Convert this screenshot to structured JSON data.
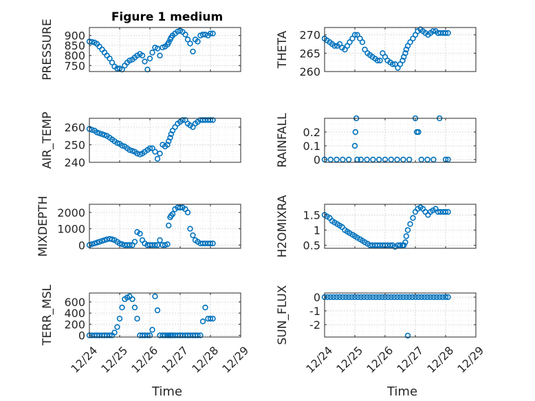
{
  "figure": {
    "title": "Figure 1 medium",
    "xlabel_left": "Time",
    "xlabel_right": "Time"
  },
  "colors": {
    "marker": "#0072BD",
    "axis": "#262626",
    "grid_major": "#d9d9d9",
    "grid_minor": "#ececec",
    "background": "#ffffff"
  },
  "chart_data": [
    {
      "id": "pressure",
      "type": "scatter",
      "ylabel": "PRESSURE",
      "xticks": [],
      "xlim": [
        0,
        5
      ],
      "ylim": [
        720,
        940
      ],
      "yticks": [
        750,
        800,
        850,
        900
      ],
      "ytick_labels": [
        "750",
        "800",
        "850",
        "900"
      ],
      "x": [
        0.0,
        0.08,
        0.17,
        0.25,
        0.33,
        0.42,
        0.5,
        0.58,
        0.67,
        0.75,
        0.83,
        0.92,
        1.0,
        1.08,
        1.17,
        1.25,
        1.33,
        1.42,
        1.5,
        1.58,
        1.67,
        1.75,
        1.83,
        1.92,
        2.0,
        2.08,
        2.17,
        2.25,
        2.33,
        2.42,
        2.5,
        2.58,
        2.62,
        2.67,
        2.7,
        2.75,
        2.83,
        2.92,
        3.0,
        3.08,
        3.17,
        3.25,
        3.33,
        3.42,
        3.5,
        3.58,
        3.67,
        3.75,
        3.83,
        3.92,
        4.0,
        4.08
      ],
      "y": [
        870,
        868,
        865,
        858,
        845,
        830,
        815,
        800,
        785,
        765,
        745,
        735,
        735,
        730,
        750,
        765,
        775,
        780,
        790,
        800,
        808,
        800,
        770,
        730,
        785,
        815,
        840,
        835,
        800,
        840,
        845,
        855,
        865,
        880,
        890,
        900,
        910,
        920,
        925,
        918,
        905,
        880,
        860,
        820,
        880,
        870,
        900,
        905,
        905,
        900,
        910,
        910
      ]
    },
    {
      "id": "theta",
      "type": "scatter",
      "ylabel": "THETA",
      "xticks": [],
      "xlim": [
        0,
        5
      ],
      "ylim": [
        260,
        272
      ],
      "yticks": [
        260,
        265,
        270
      ],
      "ytick_labels": [
        "260",
        "265",
        "270"
      ],
      "x": [
        0.0,
        0.08,
        0.17,
        0.25,
        0.33,
        0.42,
        0.5,
        0.58,
        0.67,
        0.75,
        0.83,
        0.92,
        1.0,
        1.08,
        1.17,
        1.25,
        1.33,
        1.42,
        1.5,
        1.58,
        1.67,
        1.75,
        1.83,
        1.92,
        2.0,
        2.08,
        2.17,
        2.25,
        2.33,
        2.42,
        2.5,
        2.58,
        2.62,
        2.67,
        2.7,
        2.75,
        2.83,
        2.92,
        3.0,
        3.08,
        3.17,
        3.25,
        3.33,
        3.42,
        3.5,
        3.58,
        3.67,
        3.75,
        3.83,
        3.92,
        4.0,
        4.08
      ],
      "y": [
        269,
        268.5,
        268,
        267.5,
        267,
        267,
        267.5,
        266.5,
        266,
        267,
        268,
        269,
        270,
        270,
        269,
        268,
        266,
        265,
        264.5,
        264,
        263.5,
        263,
        263,
        265,
        264,
        263,
        262.5,
        262,
        262,
        261,
        262,
        263,
        264,
        265,
        266,
        267,
        268,
        269,
        270,
        271,
        271.5,
        271,
        270.5,
        270,
        270.5,
        271,
        271,
        270.5,
        270.5,
        270.5,
        270.5,
        270.5
      ]
    },
    {
      "id": "air_temp",
      "type": "scatter",
      "ylabel": "AIR_TEMP",
      "xticks": [],
      "xlim": [
        0,
        5
      ],
      "ylim": [
        240,
        265
      ],
      "yticks": [
        240,
        250,
        260
      ],
      "ytick_labels": [
        "240",
        "250",
        "260"
      ],
      "x": [
        0.0,
        0.08,
        0.17,
        0.25,
        0.33,
        0.42,
        0.5,
        0.58,
        0.67,
        0.75,
        0.83,
        0.92,
        1.0,
        1.08,
        1.17,
        1.25,
        1.33,
        1.42,
        1.5,
        1.58,
        1.67,
        1.75,
        1.83,
        1.92,
        2.0,
        2.08,
        2.17,
        2.25,
        2.33,
        2.42,
        2.5,
        2.58,
        2.62,
        2.67,
        2.7,
        2.75,
        2.83,
        2.92,
        3.0,
        3.08,
        3.17,
        3.25,
        3.33,
        3.42,
        3.5,
        3.58,
        3.67,
        3.75,
        3.83,
        3.92,
        4.0,
        4.08
      ],
      "y": [
        259,
        258.5,
        258,
        257,
        256.5,
        256,
        255.5,
        255,
        254,
        253,
        252,
        251,
        250.5,
        249.5,
        249,
        248,
        247,
        246.5,
        246,
        245,
        244.5,
        245,
        246,
        247,
        248,
        248,
        246,
        242,
        245,
        250,
        249,
        250,
        252,
        254,
        256,
        258,
        260,
        262,
        263,
        264,
        264,
        262,
        261,
        260,
        262,
        263,
        264,
        264,
        264,
        264,
        264,
        264
      ]
    },
    {
      "id": "rainfall",
      "type": "scatter",
      "ylabel": "RAINFALL",
      "xticks": [],
      "xlim": [
        0,
        5
      ],
      "ylim": [
        -0.02,
        0.3
      ],
      "yticks": [
        0,
        0.1,
        0.2
      ],
      "ytick_labels": [
        "0",
        "0.1",
        "0.2"
      ],
      "x": [
        0.0,
        0.2,
        0.4,
        0.6,
        0.8,
        1.0,
        1.02,
        1.05,
        1.08,
        1.2,
        1.4,
        1.6,
        1.8,
        2.0,
        2.2,
        2.4,
        2.6,
        2.8,
        3.0,
        3.05,
        3.1,
        3.2,
        3.4,
        3.6,
        3.8,
        4.0,
        4.08
      ],
      "y": [
        0,
        0,
        0,
        0,
        0,
        0.1,
        0.2,
        0.3,
        0,
        0,
        0,
        0,
        0,
        0,
        0,
        0,
        0,
        0,
        0.3,
        0.2,
        0.2,
        0,
        0,
        0,
        0.3,
        0,
        0
      ]
    },
    {
      "id": "mixdepth",
      "type": "scatter",
      "ylabel": "MIXDEPTH",
      "xticks": [],
      "xlim": [
        0,
        5
      ],
      "ylim": [
        -200,
        2500
      ],
      "yticks": [
        0,
        1000,
        2000
      ],
      "ytick_labels": [
        "0",
        "1000",
        "2000"
      ],
      "x": [
        0.0,
        0.08,
        0.17,
        0.25,
        0.33,
        0.42,
        0.5,
        0.58,
        0.67,
        0.75,
        0.83,
        0.92,
        1.0,
        1.08,
        1.17,
        1.25,
        1.33,
        1.42,
        1.5,
        1.58,
        1.67,
        1.75,
        1.83,
        1.92,
        2.0,
        2.08,
        2.17,
        2.25,
        2.33,
        2.42,
        2.5,
        2.58,
        2.62,
        2.67,
        2.7,
        2.75,
        2.83,
        2.92,
        3.0,
        3.08,
        3.17,
        3.25,
        3.33,
        3.42,
        3.5,
        3.58,
        3.67,
        3.75,
        3.83,
        3.92,
        4.0,
        4.08
      ],
      "y": [
        0,
        50,
        100,
        150,
        200,
        250,
        300,
        350,
        380,
        350,
        300,
        200,
        100,
        50,
        0,
        0,
        0,
        0,
        200,
        800,
        700,
        300,
        100,
        0,
        0,
        0,
        0,
        0,
        300,
        0,
        0,
        50,
        1200,
        1700,
        1800,
        1900,
        2200,
        2300,
        2300,
        2300,
        2200,
        2000,
        1000,
        600,
        300,
        200,
        100,
        100,
        100,
        100,
        100,
        100
      ]
    },
    {
      "id": "h2omixra",
      "type": "scatter",
      "ylabel": "H2OMIXRA",
      "xticks": [],
      "xlim": [
        0,
        5
      ],
      "ylim": [
        0.4,
        1.85
      ],
      "yticks": [
        0.5,
        1,
        1.5
      ],
      "ytick_labels": [
        "0.5",
        "1",
        "1.5"
      ],
      "x": [
        0.0,
        0.08,
        0.17,
        0.25,
        0.33,
        0.42,
        0.5,
        0.58,
        0.67,
        0.75,
        0.83,
        0.92,
        1.0,
        1.08,
        1.17,
        1.25,
        1.33,
        1.42,
        1.5,
        1.58,
        1.67,
        1.75,
        1.83,
        1.92,
        2.0,
        2.08,
        2.17,
        2.25,
        2.33,
        2.42,
        2.5,
        2.58,
        2.62,
        2.67,
        2.7,
        2.75,
        2.83,
        2.92,
        3.0,
        3.08,
        3.17,
        3.25,
        3.33,
        3.42,
        3.5,
        3.58,
        3.67,
        3.75,
        3.83,
        3.92,
        4.0,
        4.08
      ],
      "y": [
        1.5,
        1.45,
        1.4,
        1.3,
        1.25,
        1.2,
        1.15,
        1.1,
        1.0,
        0.95,
        0.9,
        0.85,
        0.8,
        0.75,
        0.7,
        0.65,
        0.6,
        0.55,
        0.5,
        0.5,
        0.5,
        0.5,
        0.5,
        0.5,
        0.5,
        0.5,
        0.5,
        0.5,
        0.45,
        0.5,
        0.5,
        0.5,
        0.5,
        0.6,
        0.8,
        1.0,
        1.2,
        1.4,
        1.6,
        1.7,
        1.75,
        1.7,
        1.6,
        1.5,
        1.6,
        1.65,
        1.7,
        1.6,
        1.6,
        1.6,
        1.6,
        1.6
      ]
    },
    {
      "id": "terr_msl",
      "type": "scatter",
      "ylabel": "TERR_MSL",
      "xticks": [
        0,
        1,
        2,
        3,
        4,
        5
      ],
      "xtick_labels": [
        "12/24",
        "12/25",
        "12/26",
        "12/27",
        "12/28",
        "12/29"
      ],
      "xlim": [
        0,
        5
      ],
      "ylim": [
        -30,
        760
      ],
      "yticks": [
        0,
        200,
        400,
        600
      ],
      "ytick_labels": [
        "0",
        "200",
        "400",
        "600"
      ],
      "x": [
        0.0,
        0.08,
        0.17,
        0.25,
        0.33,
        0.42,
        0.5,
        0.58,
        0.67,
        0.75,
        0.83,
        0.92,
        1.0,
        1.08,
        1.17,
        1.25,
        1.33,
        1.42,
        1.5,
        1.58,
        1.67,
        1.75,
        1.83,
        1.92,
        2.0,
        2.08,
        2.17,
        2.25,
        2.33,
        2.42,
        2.5,
        2.58,
        2.62,
        2.67,
        2.7,
        2.75,
        2.83,
        2.92,
        3.0,
        3.08,
        3.17,
        3.25,
        3.33,
        3.42,
        3.5,
        3.58,
        3.67,
        3.75,
        3.83,
        3.92,
        4.0,
        4.08
      ],
      "y": [
        0,
        0,
        0,
        0,
        0,
        0,
        0,
        0,
        0,
        0,
        50,
        150,
        300,
        500,
        650,
        680,
        700,
        650,
        500,
        300,
        0,
        0,
        0,
        0,
        0,
        100,
        700,
        450,
        0,
        0,
        0,
        0,
        0,
        0,
        0,
        0,
        0,
        0,
        0,
        0,
        0,
        0,
        0,
        0,
        0,
        0,
        0,
        250,
        500,
        300,
        300,
        300
      ]
    },
    {
      "id": "sun_flux",
      "type": "scatter",
      "ylabel": "SUN_FLUX",
      "xticks": [
        0,
        1,
        2,
        3,
        4,
        5
      ],
      "xtick_labels": [
        "12/24",
        "12/25",
        "12/26",
        "12/27",
        "12/28",
        "12/29"
      ],
      "xlim": [
        0,
        5
      ],
      "ylim": [
        -2.9,
        0.3
      ],
      "yticks": [
        -2,
        -1,
        0
      ],
      "ytick_labels": [
        "-2",
        "-1",
        "0"
      ],
      "x": [
        0.0,
        0.1,
        0.2,
        0.3,
        0.4,
        0.5,
        0.6,
        0.7,
        0.8,
        0.9,
        1.0,
        1.1,
        1.2,
        1.3,
        1.4,
        1.5,
        1.6,
        1.7,
        1.8,
        1.9,
        2.0,
        2.1,
        2.2,
        2.3,
        2.4,
        2.5,
        2.6,
        2.7,
        2.75,
        2.8,
        2.9,
        3.0,
        3.1,
        3.2,
        3.3,
        3.4,
        3.5,
        3.6,
        3.7,
        3.8,
        3.9,
        4.0,
        4.08
      ],
      "y": [
        0,
        0,
        0,
        0,
        0,
        0,
        0,
        0,
        0,
        0,
        0,
        0,
        0,
        0,
        0,
        0,
        0,
        0,
        0,
        0,
        0,
        0,
        0,
        0,
        0,
        0,
        0,
        0,
        -2.8,
        0,
        0,
        0,
        0,
        0,
        0,
        0,
        0,
        0,
        0,
        0,
        0,
        0,
        0
      ]
    }
  ]
}
